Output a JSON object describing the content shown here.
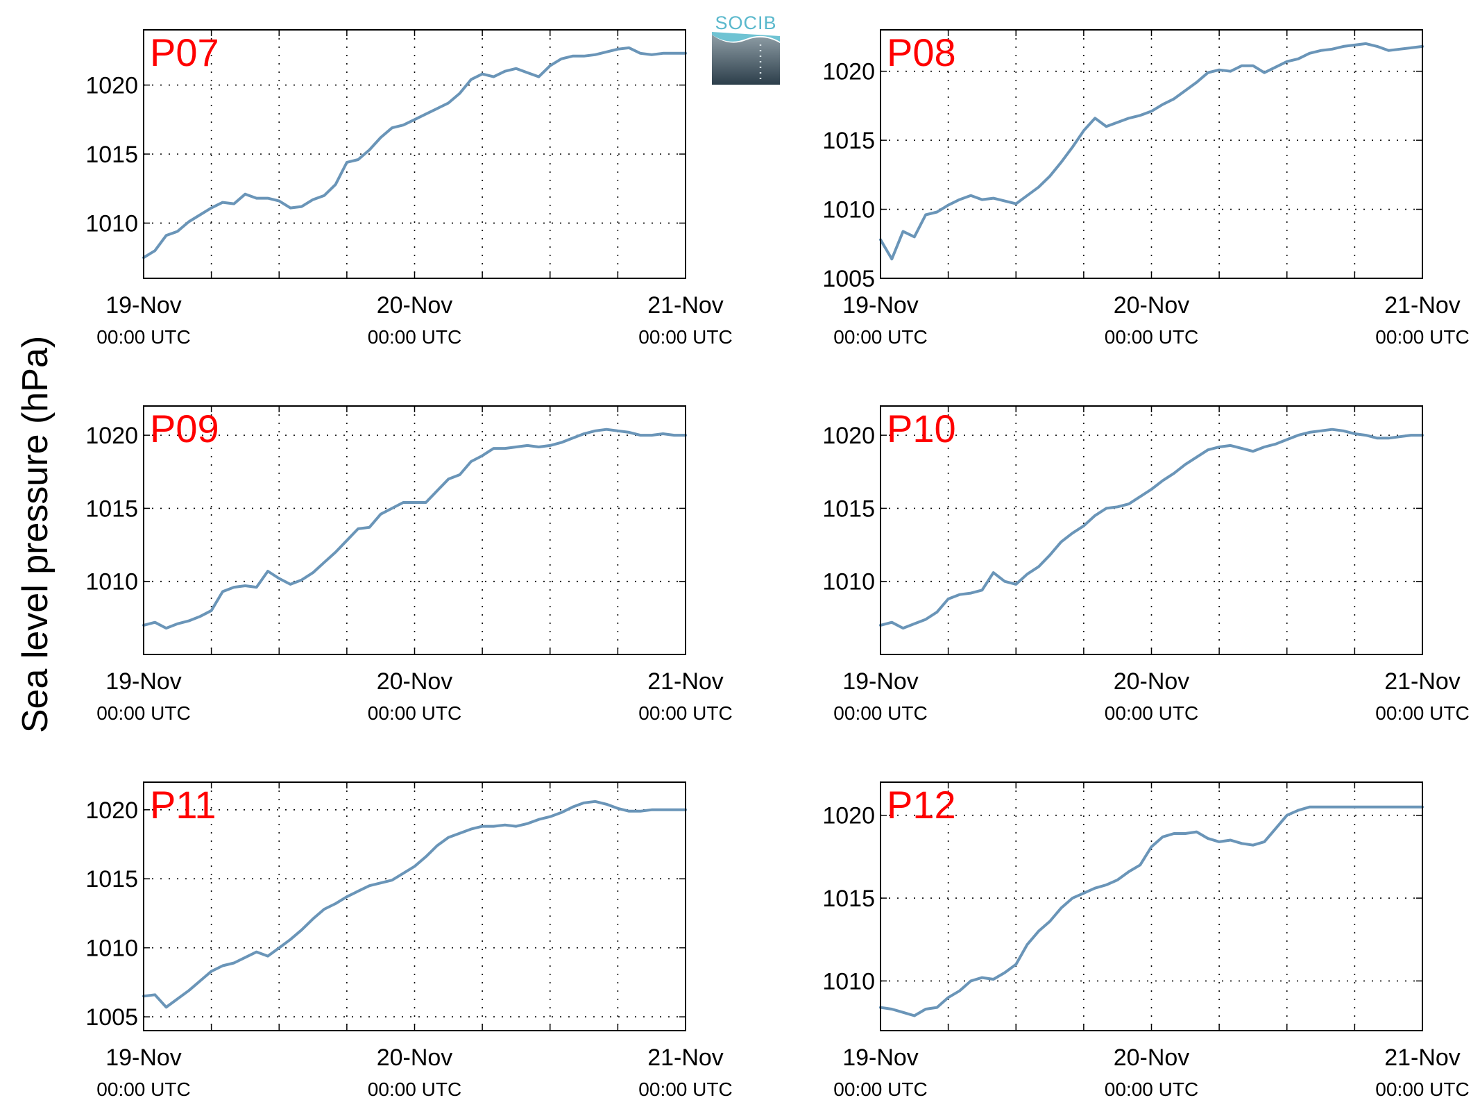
{
  "figure": {
    "ylabel": "Sea level pressure (hPa)",
    "logo_text": "SOCIB",
    "colors": {
      "line": "#6a95b8",
      "panel_label": "#ff0000",
      "axis": "#000000",
      "grid": "#000000"
    }
  },
  "chart_data": [
    {
      "type": "line",
      "title": "P07",
      "x_ticks": [
        "19-Nov",
        "20-Nov",
        "21-Nov"
      ],
      "x_tick_sub": "00:00 UTC",
      "xlim": [
        0,
        48
      ],
      "ylim": [
        1006,
        1024
      ],
      "y_ticks": [
        1010,
        1015,
        1020
      ],
      "grid": true,
      "x": [
        0,
        1,
        2,
        3,
        4,
        5,
        6,
        7,
        8,
        9,
        10,
        11,
        12,
        13,
        14,
        15,
        16,
        17,
        18,
        19,
        20,
        21,
        22,
        23,
        24,
        25,
        26,
        27,
        28,
        29,
        30,
        31,
        32,
        33,
        34,
        35,
        36,
        37,
        38,
        39,
        40,
        41,
        42,
        43,
        44,
        45,
        46,
        47,
        48
      ],
      "y": [
        1007.5,
        1008.0,
        1009.1,
        1009.4,
        1010.1,
        1010.6,
        1011.1,
        1011.5,
        1011.4,
        1012.1,
        1011.8,
        1011.8,
        1011.6,
        1011.1,
        1011.2,
        1011.7,
        1012.0,
        1012.8,
        1014.4,
        1014.6,
        1015.3,
        1016.2,
        1016.9,
        1017.1,
        1017.5,
        1017.9,
        1018.3,
        1018.7,
        1019.4,
        1020.4,
        1020.8,
        1020.6,
        1021.0,
        1021.2,
        1020.9,
        1020.6,
        1021.4,
        1021.9,
        1022.1,
        1022.1,
        1022.2,
        1022.4,
        1022.6,
        1022.7,
        1022.3,
        1022.2,
        1022.3,
        1022.3,
        1022.3
      ]
    },
    {
      "type": "line",
      "title": "P08",
      "x_ticks": [
        "19-Nov",
        "20-Nov",
        "21-Nov"
      ],
      "x_tick_sub": "00:00 UTC",
      "xlim": [
        0,
        48
      ],
      "ylim": [
        1005,
        1023
      ],
      "y_ticks": [
        1005,
        1010,
        1015,
        1020
      ],
      "grid": true,
      "x": [
        0,
        1,
        2,
        3,
        4,
        5,
        6,
        7,
        8,
        9,
        10,
        11,
        12,
        13,
        14,
        15,
        16,
        17,
        18,
        19,
        20,
        21,
        22,
        23,
        24,
        25,
        26,
        27,
        28,
        29,
        30,
        31,
        32,
        33,
        34,
        35,
        36,
        37,
        38,
        39,
        40,
        41,
        42,
        43,
        44,
        45,
        46,
        47,
        48
      ],
      "y": [
        1007.8,
        1006.4,
        1008.4,
        1008.0,
        1009.6,
        1009.8,
        1010.3,
        1010.7,
        1011.0,
        1010.7,
        1010.8,
        1010.6,
        1010.4,
        1011.0,
        1011.6,
        1012.4,
        1013.4,
        1014.5,
        1015.7,
        1016.6,
        1016.0,
        1016.3,
        1016.6,
        1016.8,
        1017.1,
        1017.6,
        1018.0,
        1018.6,
        1019.2,
        1019.9,
        1020.1,
        1020.0,
        1020.4,
        1020.4,
        1019.9,
        1020.3,
        1020.7,
        1020.9,
        1021.3,
        1021.5,
        1021.6,
        1021.8,
        1021.9,
        1022.0,
        1021.8,
        1021.5,
        1021.6,
        1021.7,
        1021.8
      ]
    },
    {
      "type": "line",
      "title": "P09",
      "x_ticks": [
        "19-Nov",
        "20-Nov",
        "21-Nov"
      ],
      "x_tick_sub": "00:00 UTC",
      "xlim": [
        0,
        48
      ],
      "ylim": [
        1005,
        1022
      ],
      "y_ticks": [
        1010,
        1015,
        1020
      ],
      "grid": true,
      "x": [
        0,
        1,
        2,
        3,
        4,
        5,
        6,
        7,
        8,
        9,
        10,
        11,
        12,
        13,
        14,
        15,
        16,
        17,
        18,
        19,
        20,
        21,
        22,
        23,
        24,
        25,
        26,
        27,
        28,
        29,
        30,
        31,
        32,
        33,
        34,
        35,
        36,
        37,
        38,
        39,
        40,
        41,
        42,
        43,
        44,
        45,
        46,
        47,
        48
      ],
      "y": [
        1007.0,
        1007.2,
        1006.8,
        1007.1,
        1007.3,
        1007.6,
        1008.0,
        1009.3,
        1009.6,
        1009.7,
        1009.6,
        1010.7,
        1010.2,
        1009.8,
        1010.1,
        1010.6,
        1011.3,
        1012.0,
        1012.8,
        1013.6,
        1013.7,
        1014.6,
        1015.0,
        1015.4,
        1015.4,
        1015.4,
        1016.2,
        1017.0,
        1017.3,
        1018.2,
        1018.6,
        1019.1,
        1019.1,
        1019.2,
        1019.3,
        1019.2,
        1019.3,
        1019.5,
        1019.8,
        1020.1,
        1020.3,
        1020.4,
        1020.3,
        1020.2,
        1020.0,
        1020.0,
        1020.1,
        1020.0,
        1020.0
      ]
    },
    {
      "type": "line",
      "title": "P10",
      "x_ticks": [
        "19-Nov",
        "20-Nov",
        "21-Nov"
      ],
      "x_tick_sub": "00:00 UTC",
      "xlim": [
        0,
        48
      ],
      "ylim": [
        1005,
        1022
      ],
      "y_ticks": [
        1010,
        1015,
        1020
      ],
      "grid": true,
      "x": [
        0,
        1,
        2,
        3,
        4,
        5,
        6,
        7,
        8,
        9,
        10,
        11,
        12,
        13,
        14,
        15,
        16,
        17,
        18,
        19,
        20,
        21,
        22,
        23,
        24,
        25,
        26,
        27,
        28,
        29,
        30,
        31,
        32,
        33,
        34,
        35,
        36,
        37,
        38,
        39,
        40,
        41,
        42,
        43,
        44,
        45,
        46,
        47,
        48
      ],
      "y": [
        1007.0,
        1007.2,
        1006.8,
        1007.1,
        1007.4,
        1007.9,
        1008.8,
        1009.1,
        1009.2,
        1009.4,
        1010.6,
        1010.0,
        1009.8,
        1010.5,
        1011.0,
        1011.8,
        1012.7,
        1013.3,
        1013.8,
        1014.5,
        1015.0,
        1015.1,
        1015.3,
        1015.8,
        1016.3,
        1016.9,
        1017.4,
        1018.0,
        1018.5,
        1019.0,
        1019.2,
        1019.3,
        1019.1,
        1018.9,
        1019.2,
        1019.4,
        1019.7,
        1020.0,
        1020.2,
        1020.3,
        1020.4,
        1020.3,
        1020.1,
        1020.0,
        1019.8,
        1019.8,
        1019.9,
        1020.0,
        1020.0
      ]
    },
    {
      "type": "line",
      "title": "P11",
      "x_ticks": [
        "19-Nov",
        "20-Nov",
        "21-Nov"
      ],
      "x_tick_sub": "00:00 UTC",
      "xlim": [
        0,
        48
      ],
      "ylim": [
        1004,
        1022
      ],
      "y_ticks": [
        1005,
        1010,
        1015,
        1020
      ],
      "grid": true,
      "x": [
        0,
        1,
        2,
        3,
        4,
        5,
        6,
        7,
        8,
        9,
        10,
        11,
        12,
        13,
        14,
        15,
        16,
        17,
        18,
        19,
        20,
        21,
        22,
        23,
        24,
        25,
        26,
        27,
        28,
        29,
        30,
        31,
        32,
        33,
        34,
        35,
        36,
        37,
        38,
        39,
        40,
        41,
        42,
        43,
        44,
        45,
        46,
        47,
        48
      ],
      "y": [
        1006.5,
        1006.6,
        1005.7,
        1006.3,
        1006.9,
        1007.6,
        1008.3,
        1008.7,
        1008.9,
        1009.3,
        1009.7,
        1009.4,
        1010.0,
        1010.6,
        1011.3,
        1012.1,
        1012.8,
        1013.2,
        1013.7,
        1014.1,
        1014.5,
        1014.7,
        1014.9,
        1015.4,
        1015.9,
        1016.6,
        1017.4,
        1018.0,
        1018.3,
        1018.6,
        1018.8,
        1018.8,
        1018.9,
        1018.8,
        1019.0,
        1019.3,
        1019.5,
        1019.8,
        1020.2,
        1020.5,
        1020.6,
        1020.4,
        1020.1,
        1019.9,
        1019.9,
        1020.0,
        1020.0,
        1020.0,
        1020.0
      ]
    },
    {
      "type": "line",
      "title": "P12",
      "x_ticks": [
        "19-Nov",
        "20-Nov",
        "21-Nov"
      ],
      "x_tick_sub": "00:00 UTC",
      "xlim": [
        0,
        48
      ],
      "ylim": [
        1007,
        1022
      ],
      "y_ticks": [
        1010,
        1015,
        1020
      ],
      "grid": true,
      "x": [
        0,
        1,
        2,
        3,
        4,
        5,
        6,
        7,
        8,
        9,
        10,
        11,
        12,
        13,
        14,
        15,
        16,
        17,
        18,
        19,
        20,
        21,
        22,
        23,
        24,
        25,
        26,
        27,
        28,
        29,
        30,
        31,
        32,
        33,
        34,
        35,
        36,
        37,
        38,
        39,
        40,
        41,
        42,
        43,
        44,
        45,
        46,
        47,
        48
      ],
      "y": [
        1008.4,
        1008.3,
        1008.1,
        1007.9,
        1008.3,
        1008.4,
        1009.0,
        1009.4,
        1010.0,
        1010.2,
        1010.1,
        1010.5,
        1011.0,
        1012.2,
        1013.0,
        1013.6,
        1014.4,
        1015.0,
        1015.3,
        1015.6,
        1015.8,
        1016.1,
        1016.6,
        1017.0,
        1018.1,
        1018.7,
        1018.9,
        1018.9,
        1019.0,
        1018.6,
        1018.4,
        1018.5,
        1018.3,
        1018.2,
        1018.4,
        1019.2,
        1020.0,
        1020.3,
        1020.5,
        1020.5,
        1020.5,
        1020.5,
        1020.5,
        1020.5,
        1020.5,
        1020.5,
        1020.5,
        1020.5,
        1020.5
      ]
    }
  ]
}
